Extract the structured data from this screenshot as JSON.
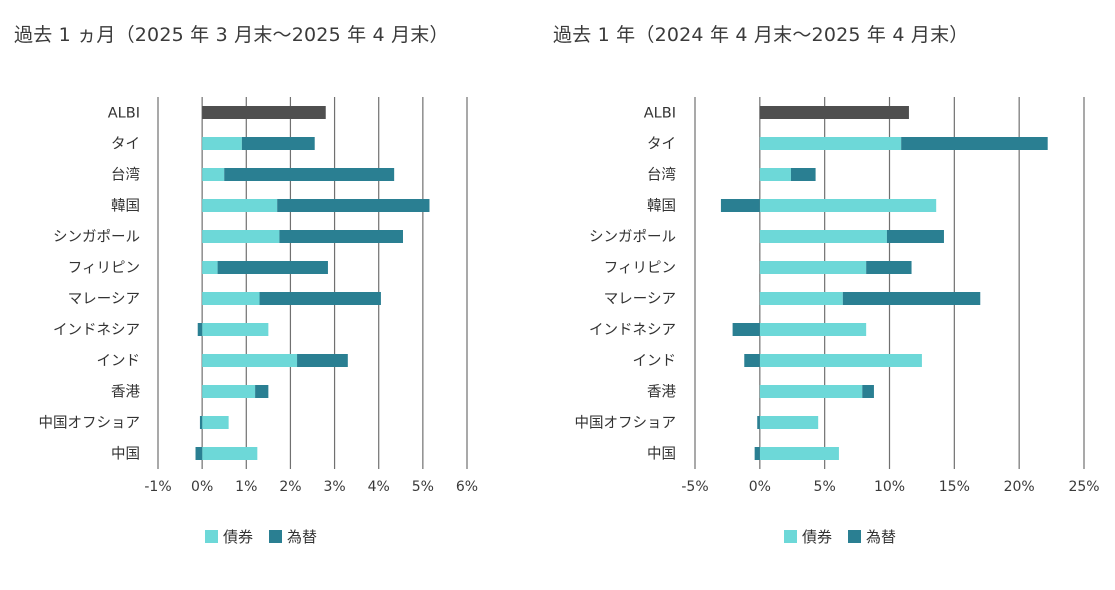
{
  "colors": {
    "bond": "#6dd8d8",
    "fx": "#2a7f92",
    "albi": "#4f4f4f",
    "grid": "#707070"
  },
  "legend": {
    "bond": "債券",
    "fx": "為替"
  },
  "chart_data": [
    {
      "type": "bar",
      "orientation": "horizontal",
      "stacked": true,
      "title": "過去 1 ヵ月（2025 年 3 月末～2025 年 4 月末）",
      "categories": [
        "ALBI",
        "タイ",
        "台湾",
        "韓国",
        "シンガポール",
        "フィリピン",
        "マレーシア",
        "インドネシア",
        "インド",
        "香港",
        "中国オフショア",
        "中国"
      ],
      "xlim": [
        -1,
        6
      ],
      "xticks": [
        -1,
        0,
        1,
        2,
        3,
        4,
        5,
        6
      ],
      "xtick_labels": [
        "-1%",
        "0%",
        "1%",
        "2%",
        "3%",
        "4%",
        "5%",
        "6%"
      ],
      "series": [
        {
          "name": "債券",
          "values": [
            2.8,
            0.9,
            0.5,
            1.7,
            1.75,
            0.35,
            1.3,
            1.5,
            2.15,
            1.2,
            0.6,
            1.25
          ]
        },
        {
          "name": "為替",
          "values": [
            0,
            1.65,
            3.85,
            3.45,
            2.8,
            2.5,
            2.75,
            -0.1,
            1.15,
            0.3,
            -0.05,
            -0.15
          ]
        }
      ],
      "albi_total": 2.8
    },
    {
      "type": "bar",
      "orientation": "horizontal",
      "stacked": true,
      "title": "過去 1 年（2024 年 4 月末～2025 年 4 月末）",
      "categories": [
        "ALBI",
        "タイ",
        "台湾",
        "韓国",
        "シンガポール",
        "フィリピン",
        "マレーシア",
        "インドネシア",
        "インド",
        "香港",
        "中国オフショア",
        "中国"
      ],
      "xlim": [
        -5,
        25
      ],
      "xticks": [
        -5,
        0,
        5,
        10,
        15,
        20,
        25
      ],
      "xtick_labels": [
        "-5%",
        "0%",
        "5%",
        "10%",
        "15%",
        "20%",
        "25%"
      ],
      "series": [
        {
          "name": "債券",
          "values": [
            11.5,
            10.9,
            2.4,
            13.6,
            9.8,
            8.2,
            6.4,
            8.2,
            12.5,
            7.9,
            4.5,
            6.1
          ]
        },
        {
          "name": "為替",
          "values": [
            0,
            11.3,
            1.9,
            -3.0,
            4.4,
            3.5,
            10.6,
            -2.1,
            -1.2,
            0.9,
            -0.2,
            -0.4
          ]
        }
      ],
      "albi_total": 11.5
    }
  ]
}
